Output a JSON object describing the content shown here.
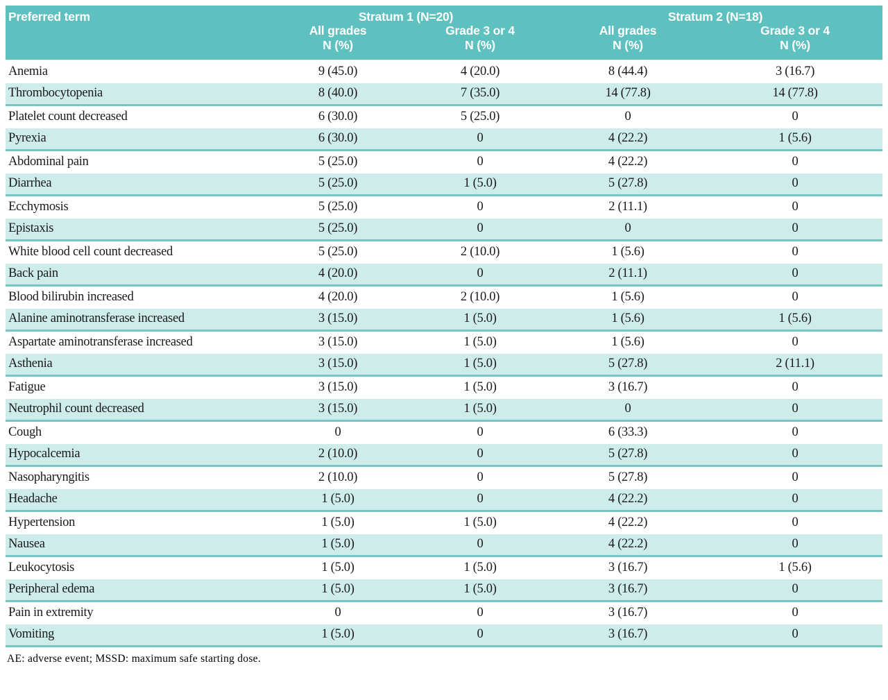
{
  "colors": {
    "header_bg": "#5ec0bf",
    "shaded_row_bg": "#cdecea",
    "row_separator": "#74c7c6",
    "header_text": "#ffffff",
    "body_text": "#1a1a1a"
  },
  "table": {
    "term_header": "Preferred term",
    "groups": [
      {
        "label": "Stratum 1 (N=20)",
        "subcolumns": [
          {
            "line1": "All grades",
            "line2": "N (%)"
          },
          {
            "line1": "Grade 3 or 4",
            "line2": "N (%)"
          }
        ]
      },
      {
        "label": "Stratum 2 (N=18)",
        "subcolumns": [
          {
            "line1": "All grades",
            "line2": "N (%)"
          },
          {
            "line1": "Grade 3 or 4",
            "line2": "N (%)"
          }
        ]
      }
    ],
    "rows": [
      {
        "term": "Anemia",
        "s1_all": "9 (45.0)",
        "s1_g34": "4 (20.0)",
        "s2_all": "8 (44.4)",
        "s2_g34": "3 (16.7)"
      },
      {
        "term": "Thrombocytopenia",
        "s1_all": "8 (40.0)",
        "s1_g34": "7 (35.0)",
        "s2_all": "14 (77.8)",
        "s2_g34": "14 (77.8)"
      },
      {
        "term": "Platelet count decreased",
        "s1_all": "6 (30.0)",
        "s1_g34": "5 (25.0)",
        "s2_all": "0",
        "s2_g34": "0"
      },
      {
        "term": "Pyrexia",
        "s1_all": "6 (30.0)",
        "s1_g34": "0",
        "s2_all": "4 (22.2)",
        "s2_g34": "1 (5.6)"
      },
      {
        "term": "Abdominal pain",
        "s1_all": "5 (25.0)",
        "s1_g34": "0",
        "s2_all": "4 (22.2)",
        "s2_g34": "0"
      },
      {
        "term": "Diarrhea",
        "s1_all": "5 (25.0)",
        "s1_g34": "1 (5.0)",
        "s2_all": "5 (27.8)",
        "s2_g34": "0"
      },
      {
        "term": "Ecchymosis",
        "s1_all": "5 (25.0)",
        "s1_g34": "0",
        "s2_all": "2 (11.1)",
        "s2_g34": "0"
      },
      {
        "term": "Epistaxis",
        "s1_all": "5 (25.0)",
        "s1_g34": "0",
        "s2_all": "0",
        "s2_g34": "0"
      },
      {
        "term": "White blood cell count decreased",
        "s1_all": "5 (25.0)",
        "s1_g34": "2 (10.0)",
        "s2_all": "1 (5.6)",
        "s2_g34": "0"
      },
      {
        "term": "Back pain",
        "s1_all": "4 (20.0)",
        "s1_g34": "0",
        "s2_all": "2 (11.1)",
        "s2_g34": "0"
      },
      {
        "term": "Blood bilirubin increased",
        "s1_all": "4 (20.0)",
        "s1_g34": "2 (10.0)",
        "s2_all": "1 (5.6)",
        "s2_g34": "0"
      },
      {
        "term": "Alanine aminotransferase increased",
        "s1_all": "3 (15.0)",
        "s1_g34": "1 (5.0)",
        "s2_all": "1 (5.6)",
        "s2_g34": "1 (5.6)"
      },
      {
        "term": "Aspartate aminotransferase increased",
        "s1_all": "3 (15.0)",
        "s1_g34": "1 (5.0)",
        "s2_all": "1 (5.6)",
        "s2_g34": "0"
      },
      {
        "term": "Asthenia",
        "s1_all": "3 (15.0)",
        "s1_g34": "1 (5.0)",
        "s2_all": "5 (27.8)",
        "s2_g34": "2 (11.1)"
      },
      {
        "term": "Fatigue",
        "s1_all": "3 (15.0)",
        "s1_g34": "1 (5.0)",
        "s2_all": "3 (16.7)",
        "s2_g34": "0"
      },
      {
        "term": "Neutrophil count decreased",
        "s1_all": "3 (15.0)",
        "s1_g34": "1 (5.0)",
        "s2_all": "0",
        "s2_g34": "0"
      },
      {
        "term": "Cough",
        "s1_all": "0",
        "s1_g34": "0",
        "s2_all": "6 (33.3)",
        "s2_g34": "0"
      },
      {
        "term": "Hypocalcemia",
        "s1_all": "2 (10.0)",
        "s1_g34": "0",
        "s2_all": "5 (27.8)",
        "s2_g34": "0"
      },
      {
        "term": "Nasopharyngitis",
        "s1_all": "2 (10.0)",
        "s1_g34": "0",
        "s2_all": "5 (27.8)",
        "s2_g34": "0"
      },
      {
        "term": "Headache",
        "s1_all": "1 (5.0)",
        "s1_g34": "0",
        "s2_all": "4 (22.2)",
        "s2_g34": "0"
      },
      {
        "term": "Hypertension",
        "s1_all": "1 (5.0)",
        "s1_g34": "1 (5.0)",
        "s2_all": "4 (22.2)",
        "s2_g34": "0"
      },
      {
        "term": "Nausea",
        "s1_all": "1 (5.0)",
        "s1_g34": "0",
        "s2_all": "4 (22.2)",
        "s2_g34": "0"
      },
      {
        "term": "Leukocytosis",
        "s1_all": "1 (5.0)",
        "s1_g34": "1 (5.0)",
        "s2_all": "3 (16.7)",
        "s2_g34": "1 (5.6)"
      },
      {
        "term": "Peripheral edema",
        "s1_all": "1 (5.0)",
        "s1_g34": "1 (5.0)",
        "s2_all": "3 (16.7)",
        "s2_g34": "0"
      },
      {
        "term": "Pain in extremity",
        "s1_all": "0",
        "s1_g34": "0",
        "s2_all": "3 (16.7)",
        "s2_g34": "0"
      },
      {
        "term": "Vomiting",
        "s1_all": "1 (5.0)",
        "s1_g34": "0",
        "s2_all": "3 (16.7)",
        "s2_g34": "0"
      }
    ]
  },
  "footnote": "AE: adverse event; MSSD: maximum safe starting dose."
}
